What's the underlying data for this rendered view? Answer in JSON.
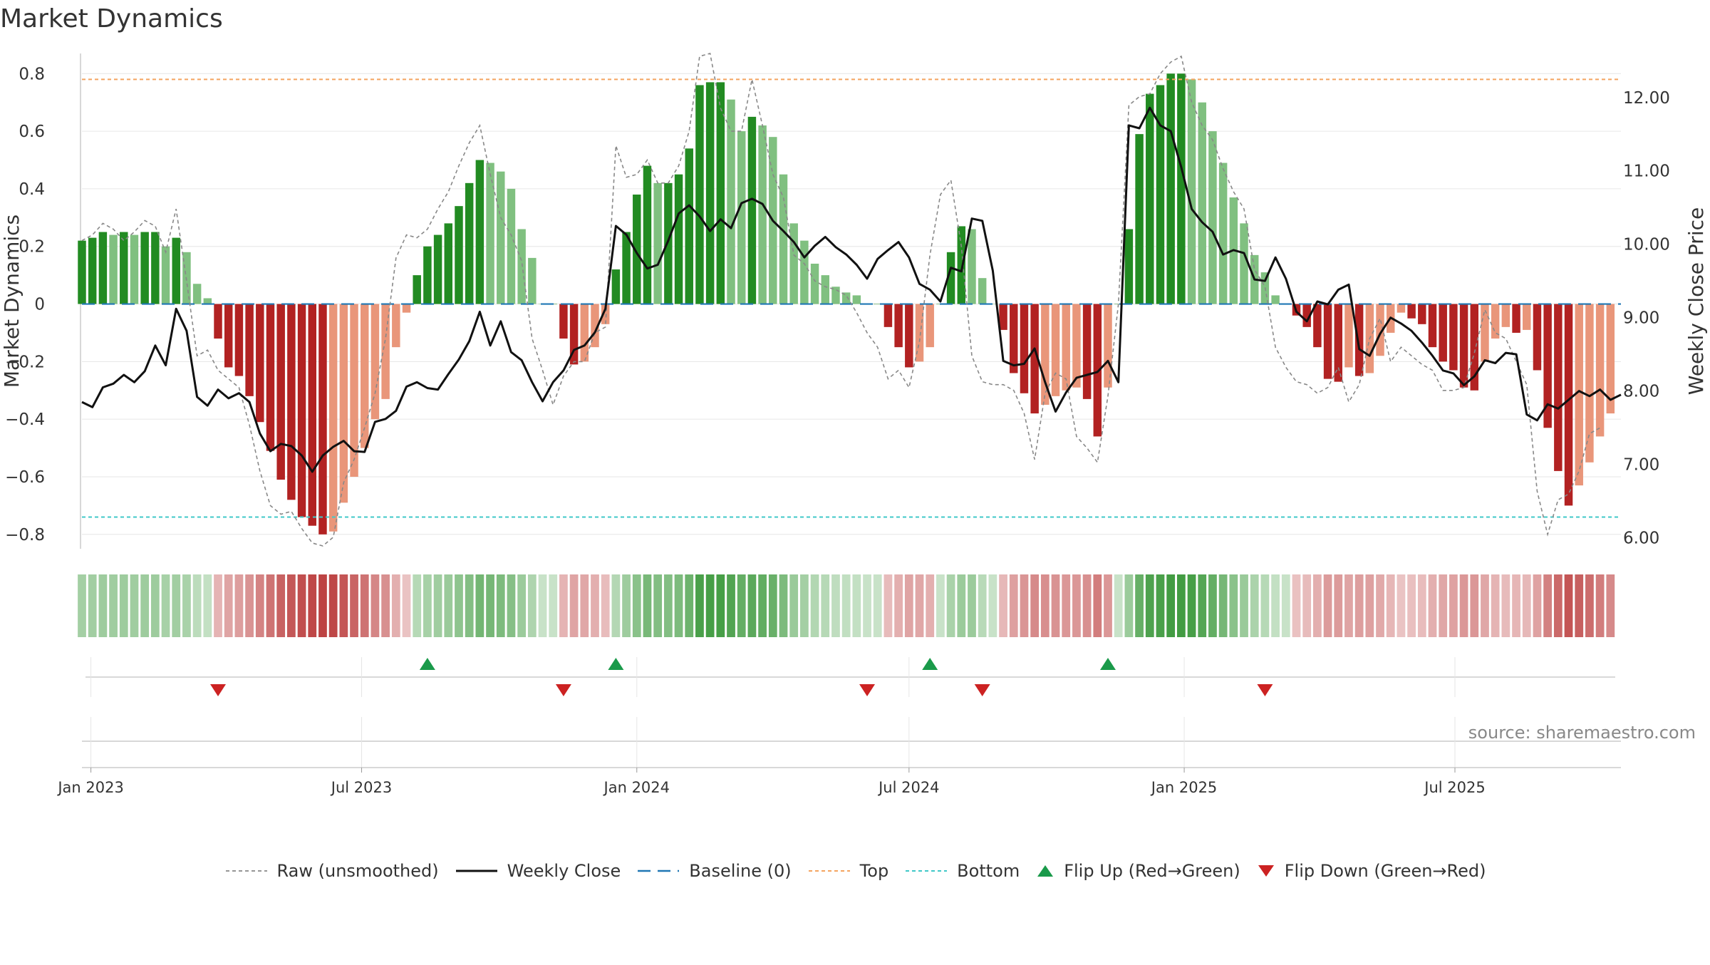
{
  "title": "Market Dynamics",
  "source": "source: sharemaestro.com",
  "colors": {
    "green_strong": "#228b22",
    "green_light": "#80c080",
    "red_strong": "#b22222",
    "red_light": "#e9967a",
    "raw": "#888888",
    "close": "#111111",
    "baseline": "#1f77b4",
    "top": "#f4a460",
    "bottom": "#40c8c8",
    "flip_up": "#1a9a4a",
    "flip_down": "#cc2222"
  },
  "legend": [
    {
      "key": "raw",
      "label": "Raw (unsmoothed)"
    },
    {
      "key": "close",
      "label": "Weekly Close"
    },
    {
      "key": "baseline",
      "label": "Baseline (0)"
    },
    {
      "key": "top",
      "label": "Top"
    },
    {
      "key": "bottom",
      "label": "Bottom"
    },
    {
      "key": "flip_up",
      "label": "Flip Up (Red→Green)"
    },
    {
      "key": "flip_down",
      "label": "Flip Down (Green→Red)"
    }
  ],
  "chart_data": {
    "type": "bar",
    "ylabel": "Market Dynamics",
    "y2label": "Weekly Close Price",
    "ylim": [
      -0.85,
      0.87
    ],
    "y2lim": [
      5.85,
      12.6
    ],
    "yticks": [
      0.8,
      0.6,
      0.4,
      0.2,
      0,
      -0.2,
      -0.4,
      -0.6,
      -0.8
    ],
    "ytick_labels": [
      "0.8",
      "0.6",
      "0.4",
      "0.2",
      "0",
      "−0.2",
      "−0.4",
      "−0.6",
      "−0.8"
    ],
    "y2ticks": [
      12,
      11,
      10,
      9,
      8,
      7,
      6
    ],
    "y2tick_labels": [
      "12.00",
      "11.00",
      "10.00",
      "9.00",
      "8.00",
      "7.00",
      "6.00"
    ],
    "x_start": "2022-12-26",
    "x_end": "2025-10-20",
    "xticks": [
      "2023-01-01",
      "2023-07-01",
      "2024-01-01",
      "2024-07-01",
      "2025-01-01",
      "2025-07-01"
    ],
    "xtick_labels": [
      "Jan 2023",
      "Jul 2023",
      "Jan 2024",
      "Jul 2024",
      "Jan 2025",
      "Jul 2025"
    ],
    "baseline": 0,
    "top": 0.78,
    "bottom": -0.74,
    "weeks_start": "2022-12-26",
    "weeks_interval_days": 7,
    "smoothed": [
      0.22,
      0.23,
      0.25,
      0.24,
      0.25,
      0.24,
      0.25,
      0.25,
      0.2,
      0.23,
      0.18,
      0.07,
      0.02,
      -0.12,
      -0.22,
      -0.25,
      -0.32,
      -0.41,
      -0.51,
      -0.61,
      -0.68,
      -0.74,
      -0.77,
      -0.8,
      -0.79,
      -0.69,
      -0.6,
      -0.5,
      -0.4,
      -0.33,
      -0.15,
      -0.03,
      0.1,
      0.2,
      0.24,
      0.28,
      0.34,
      0.42,
      0.5,
      0.49,
      0.46,
      0.4,
      0.26,
      0.16,
      0.0,
      0.0,
      -0.12,
      -0.21,
      -0.2,
      -0.15,
      -0.07,
      0.12,
      0.25,
      0.38,
      0.48,
      0.42,
      0.42,
      0.45,
      0.54,
      0.76,
      0.77,
      0.77,
      0.71,
      0.6,
      0.65,
      0.62,
      0.58,
      0.45,
      0.28,
      0.22,
      0.14,
      0.1,
      0.06,
      0.04,
      0.03,
      0.0,
      0.0,
      -0.08,
      -0.15,
      -0.22,
      -0.2,
      -0.15,
      0.0,
      0.18,
      0.27,
      0.26,
      0.09,
      0.0,
      -0.09,
      -0.24,
      -0.31,
      -0.38,
      -0.35,
      -0.32,
      -0.3,
      -0.29,
      -0.33,
      -0.46,
      -0.29,
      0.0,
      0.26,
      0.59,
      0.73,
      0.76,
      0.8,
      0.8,
      0.78,
      0.7,
      0.6,
      0.49,
      0.37,
      0.28,
      0.17,
      0.11,
      0.03,
      0.0,
      -0.04,
      -0.08,
      -0.15,
      -0.26,
      -0.27,
      -0.22,
      -0.25,
      -0.24,
      -0.18,
      -0.1,
      -0.03,
      -0.05,
      -0.07,
      -0.15,
      -0.2,
      -0.23,
      -0.29,
      -0.3,
      -0.2,
      -0.12,
      -0.08,
      -0.1,
      -0.09,
      -0.23,
      -0.43,
      -0.58,
      -0.7,
      -0.63,
      -0.55,
      -0.46,
      -0.38
    ],
    "raw": [
      0.22,
      0.24,
      0.28,
      0.26,
      0.22,
      0.25,
      0.29,
      0.27,
      0.18,
      0.33,
      0.08,
      -0.18,
      -0.16,
      -0.23,
      -0.26,
      -0.29,
      -0.42,
      -0.58,
      -0.7,
      -0.73,
      -0.72,
      -0.78,
      -0.83,
      -0.84,
      -0.81,
      -0.62,
      -0.54,
      -0.43,
      -0.31,
      -0.12,
      0.16,
      0.24,
      0.23,
      0.26,
      0.33,
      0.39,
      0.48,
      0.56,
      0.62,
      0.45,
      0.3,
      0.24,
      0.15,
      -0.12,
      -0.23,
      -0.35,
      -0.25,
      -0.2,
      -0.2,
      -0.1,
      -0.08,
      0.55,
      0.44,
      0.45,
      0.5,
      0.42,
      0.42,
      0.48,
      0.6,
      0.86,
      0.87,
      0.68,
      0.6,
      0.6,
      0.78,
      0.62,
      0.45,
      0.37,
      0.17,
      0.14,
      0.08,
      0.06,
      0.05,
      0.03,
      -0.03,
      -0.1,
      -0.15,
      -0.26,
      -0.23,
      -0.29,
      -0.13,
      0.17,
      0.38,
      0.43,
      0.2,
      -0.18,
      -0.27,
      -0.28,
      -0.28,
      -0.3,
      -0.38,
      -0.54,
      -0.31,
      -0.24,
      -0.26,
      -0.46,
      -0.5,
      -0.55,
      -0.32,
      0.0,
      0.69,
      0.72,
      0.73,
      0.8,
      0.84,
      0.86,
      0.7,
      0.62,
      0.57,
      0.47,
      0.39,
      0.33,
      0.12,
      0.06,
      -0.15,
      -0.22,
      -0.27,
      -0.28,
      -0.31,
      -0.29,
      -0.22,
      -0.34,
      -0.28,
      -0.12,
      -0.05,
      -0.2,
      -0.15,
      -0.18,
      -0.21,
      -0.23,
      -0.3,
      -0.3,
      -0.29,
      -0.17,
      -0.02,
      -0.1,
      -0.12,
      -0.2,
      -0.28,
      -0.65,
      -0.8,
      -0.68,
      -0.66,
      -0.58,
      -0.45,
      -0.43
    ],
    "close": [
      7.85,
      7.78,
      8.05,
      8.1,
      8.22,
      8.12,
      8.27,
      8.62,
      8.35,
      9.12,
      8.82,
      7.92,
      7.8,
      8.02,
      7.9,
      7.97,
      7.85,
      7.42,
      7.18,
      7.28,
      7.25,
      7.12,
      6.9,
      7.12,
      7.24,
      7.32,
      7.18,
      7.17,
      7.58,
      7.62,
      7.73,
      8.06,
      8.12,
      8.04,
      8.02,
      8.23,
      8.43,
      8.68,
      9.08,
      8.62,
      8.95,
      8.53,
      8.42,
      8.12,
      7.86,
      8.12,
      8.28,
      8.56,
      8.62,
      8.8,
      9.12,
      10.25,
      10.13,
      9.88,
      9.67,
      9.72,
      10.05,
      10.42,
      10.53,
      10.38,
      10.18,
      10.34,
      10.22,
      10.56,
      10.62,
      10.55,
      10.32,
      10.18,
      10.03,
      9.82,
      9.98,
      10.1,
      9.96,
      9.86,
      9.72,
      9.53,
      9.8,
      9.92,
      10.03,
      9.82,
      9.46,
      9.38,
      9.22,
      9.68,
      9.63,
      10.35,
      10.32,
      9.64,
      8.41,
      8.35,
      8.37,
      8.58,
      8.12,
      7.72,
      7.98,
      8.18,
      8.22,
      8.26,
      8.41,
      8.12,
      11.62,
      11.58,
      11.86,
      11.62,
      11.54,
      11.05,
      10.48,
      10.3,
      10.17,
      9.86,
      9.92,
      9.88,
      9.52,
      9.5,
      9.82,
      9.53,
      9.08,
      8.95,
      9.22,
      9.18,
      9.38,
      9.45,
      8.57,
      8.48,
      8.78,
      9.0,
      8.92,
      8.82,
      8.66,
      8.48,
      8.28,
      8.24,
      8.08,
      8.2,
      8.42,
      8.38,
      8.52,
      8.5,
      7.68,
      7.6,
      7.82,
      7.76,
      7.88,
      8.0,
      7.93,
      8.02,
      7.88,
      7.95
    ],
    "flip_up_weeks": [
      33,
      51,
      81,
      98
    ],
    "flip_down_weeks": [
      13,
      46,
      75,
      86,
      113
    ]
  }
}
